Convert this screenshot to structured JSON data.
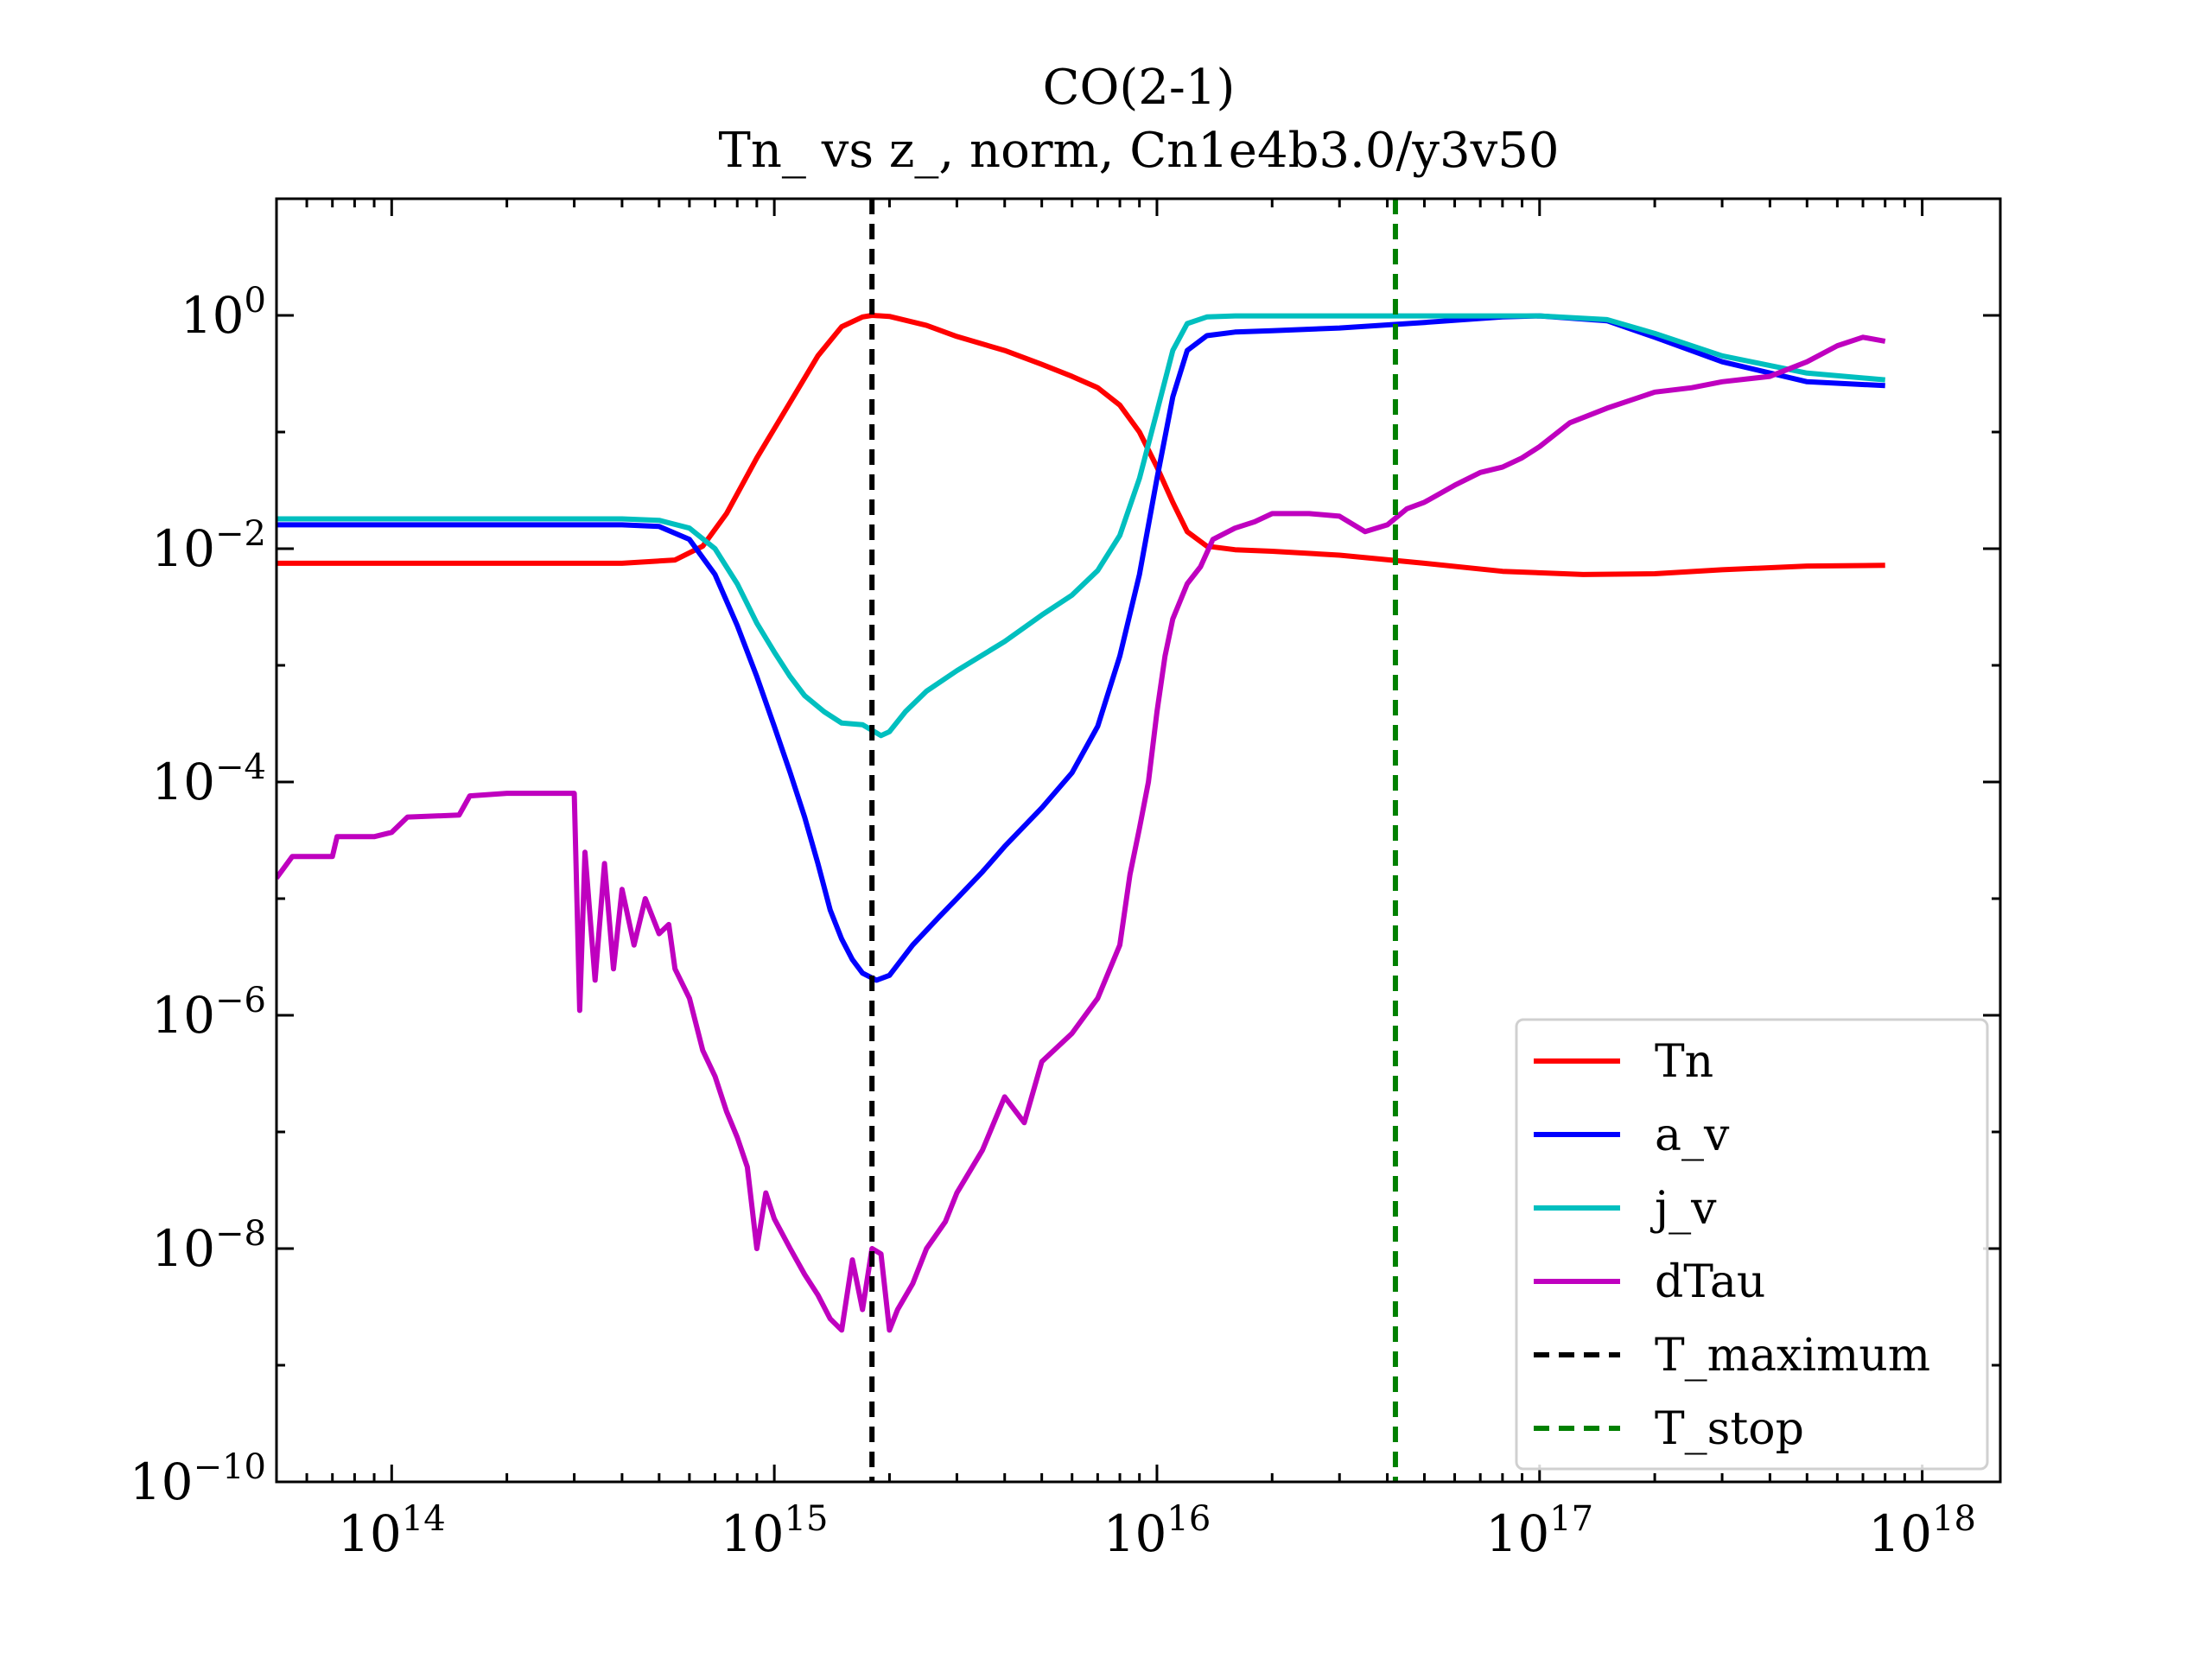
{
  "chart_data": {
    "type": "line",
    "title": "CO(2-1)",
    "subtitle": "Tn_ vs z_, norm, Cn1e4b3.0/y3v50",
    "xlabel": "",
    "ylabel": "",
    "xscale": "log",
    "yscale": "log",
    "xlim": [
      50000000000000.0,
      1.6e+18
    ],
    "ylim": [
      1e-10,
      10
    ],
    "x_ticks": [
      {
        "value": 100000000000000.0,
        "base": "10",
        "exp": "14"
      },
      {
        "value": 1000000000000000.0,
        "base": "10",
        "exp": "15"
      },
      {
        "value": 1e+16,
        "base": "10",
        "exp": "16"
      },
      {
        "value": 1e+17,
        "base": "10",
        "exp": "17"
      },
      {
        "value": 1e+18,
        "base": "10",
        "exp": "18"
      }
    ],
    "y_ticks": [
      {
        "value": 1,
        "base": "10",
        "exp": "0"
      },
      {
        "value": 0.01,
        "base": "10",
        "exp": "−2"
      },
      {
        "value": 0.0001,
        "base": "10",
        "exp": "−4"
      },
      {
        "value": 1e-06,
        "base": "10",
        "exp": "−6"
      },
      {
        "value": 1e-08,
        "base": "10",
        "exp": "−8"
      },
      {
        "value": 1e-10,
        "base": "10",
        "exp": "−10"
      }
    ],
    "grid": false,
    "legend_position": "bottom-right",
    "series": [
      {
        "name": "Tn",
        "color": "#ff0000",
        "style": "solid",
        "points": [
          [
            50000000000000.0,
            0.0075
          ],
          [
            200000000000000.0,
            0.0075
          ],
          [
            400000000000000.0,
            0.0075
          ],
          [
            550000000000000.0,
            0.008
          ],
          [
            650000000000000.0,
            0.0105
          ],
          [
            750000000000000.0,
            0.02
          ],
          [
            900000000000000.0,
            0.06
          ],
          [
            1100000000000000.0,
            0.18
          ],
          [
            1300000000000000.0,
            0.45
          ],
          [
            1500000000000000.0,
            0.8
          ],
          [
            1700000000000000.0,
            0.97
          ],
          [
            1800000000000000.0,
            1.0
          ],
          [
            2000000000000000.0,
            0.98
          ],
          [
            2500000000000000.0,
            0.82
          ],
          [
            3000000000000000.0,
            0.66
          ],
          [
            4000000000000000.0,
            0.5
          ],
          [
            5000000000000000.0,
            0.38
          ],
          [
            6000000000000000.0,
            0.3
          ],
          [
            7000000000000000.0,
            0.24
          ],
          [
            8000000000000000.0,
            0.17
          ],
          [
            9000000000000000.0,
            0.1
          ],
          [
            1e+16,
            0.05
          ],
          [
            1.1e+16,
            0.025
          ],
          [
            1.2e+16,
            0.014
          ],
          [
            1.35e+16,
            0.0105
          ],
          [
            1.6e+16,
            0.0098
          ],
          [
            2e+16,
            0.0095
          ],
          [
            3e+16,
            0.0088
          ],
          [
            5e+16,
            0.0075
          ],
          [
            8e+16,
            0.0064
          ],
          [
            1.3e+17,
            0.006
          ],
          [
            2e+17,
            0.0061
          ],
          [
            3e+17,
            0.0066
          ],
          [
            5e+17,
            0.0071
          ],
          [
            8e+17,
            0.0072
          ]
        ]
      },
      {
        "name": "a_v",
        "color": "#0000ff",
        "style": "solid",
        "points": [
          [
            50000000000000.0,
            0.016
          ],
          [
            200000000000000.0,
            0.016
          ],
          [
            400000000000000.0,
            0.016
          ],
          [
            500000000000000.0,
            0.0155
          ],
          [
            600000000000000.0,
            0.012
          ],
          [
            700000000000000.0,
            0.006
          ],
          [
            800000000000000.0,
            0.0022
          ],
          [
            900000000000000.0,
            0.0008
          ],
          [
            1000000000000000.0,
            0.0003
          ],
          [
            1100000000000000.0,
            0.00012
          ],
          [
            1200000000000000.0,
            5e-05
          ],
          [
            1300000000000000.0,
            2e-05
          ],
          [
            1400000000000000.0,
            8e-06
          ],
          [
            1500000000000000.0,
            4.5e-06
          ],
          [
            1600000000000000.0,
            3e-06
          ],
          [
            1700000000000000.0,
            2.3e-06
          ],
          [
            1850000000000000.0,
            2e-06
          ],
          [
            2000000000000000.0,
            2.2e-06
          ],
          [
            2300000000000000.0,
            4e-06
          ],
          [
            2700000000000000.0,
            7e-06
          ],
          [
            3000000000000000.0,
            1e-05
          ],
          [
            3500000000000000.0,
            1.7e-05
          ],
          [
            4000000000000000.0,
            2.8e-05
          ],
          [
            5000000000000000.0,
            6e-05
          ],
          [
            6000000000000000.0,
            0.00012
          ],
          [
            7000000000000000.0,
            0.0003
          ],
          [
            8000000000000000.0,
            0.0012
          ],
          [
            9000000000000000.0,
            0.006
          ],
          [
            1e+16,
            0.04
          ],
          [
            1.1e+16,
            0.2
          ],
          [
            1.2e+16,
            0.5
          ],
          [
            1.35e+16,
            0.67
          ],
          [
            1.6e+16,
            0.72
          ],
          [
            2e+16,
            0.74
          ],
          [
            3e+16,
            0.78
          ],
          [
            5e+16,
            0.87
          ],
          [
            8e+16,
            0.97
          ],
          [
            1e+17,
            0.99
          ],
          [
            1.5e+17,
            0.9
          ],
          [
            2e+17,
            0.65
          ],
          [
            3e+17,
            0.4
          ],
          [
            5e+17,
            0.27
          ],
          [
            8e+17,
            0.25
          ]
        ]
      },
      {
        "name": "j_v",
        "color": "#00bfbf",
        "style": "solid",
        "points": [
          [
            50000000000000.0,
            0.018
          ],
          [
            200000000000000.0,
            0.018
          ],
          [
            400000000000000.0,
            0.018
          ],
          [
            500000000000000.0,
            0.0175
          ],
          [
            600000000000000.0,
            0.015
          ],
          [
            700000000000000.0,
            0.01
          ],
          [
            800000000000000.0,
            0.005
          ],
          [
            900000000000000.0,
            0.0023
          ],
          [
            1000000000000000.0,
            0.0013
          ],
          [
            1100000000000000.0,
            0.0008
          ],
          [
            1200000000000000.0,
            0.00055
          ],
          [
            1350000000000000.0,
            0.0004
          ],
          [
            1500000000000000.0,
            0.00032
          ],
          [
            1700000000000000.0,
            0.00031
          ],
          [
            1900000000000000.0,
            0.00025
          ],
          [
            2000000000000000.0,
            0.00027
          ],
          [
            2200000000000000.0,
            0.0004
          ],
          [
            2500000000000000.0,
            0.0006
          ],
          [
            3000000000000000.0,
            0.0009
          ],
          [
            4000000000000000.0,
            0.0016
          ],
          [
            5000000000000000.0,
            0.0027
          ],
          [
            6000000000000000.0,
            0.004
          ],
          [
            7000000000000000.0,
            0.0065
          ],
          [
            8000000000000000.0,
            0.013
          ],
          [
            9000000000000000.0,
            0.04
          ],
          [
            1e+16,
            0.15
          ],
          [
            1.1e+16,
            0.5
          ],
          [
            1.2e+16,
            0.85
          ],
          [
            1.35e+16,
            0.97
          ],
          [
            1.6e+16,
            0.99
          ],
          [
            2e+16,
            0.99
          ],
          [
            5e+16,
            0.99
          ],
          [
            1e+17,
            0.99
          ],
          [
            1.5e+17,
            0.92
          ],
          [
            2e+17,
            0.7
          ],
          [
            3e+17,
            0.45
          ],
          [
            5e+17,
            0.32
          ],
          [
            8e+17,
            0.28
          ]
        ]
      },
      {
        "name": "dTau",
        "color": "#bf00bf",
        "style": "solid",
        "points": [
          [
            50000000000000.0,
            1.5e-05
          ],
          [
            55000000000000.0,
            2.3e-05
          ],
          [
            70000000000000.0,
            2.3e-05
          ],
          [
            72000000000000.0,
            3.4e-05
          ],
          [
            90000000000000.0,
            3.4e-05
          ],
          [
            100000000000000.0,
            3.7e-05
          ],
          [
            110000000000000.0,
            5e-05
          ],
          [
            150000000000000.0,
            5.2e-05
          ],
          [
            160000000000000.0,
            7.6e-05
          ],
          [
            200000000000000.0,
            8e-05
          ],
          [
            300000000000000.0,
            8e-05
          ],
          [
            310000000000000.0,
            1.1e-06
          ],
          [
            320000000000000.0,
            2.5e-05
          ],
          [
            340000000000000.0,
            2e-06
          ],
          [
            360000000000000.0,
            2e-05
          ],
          [
            380000000000000.0,
            2.5e-06
          ],
          [
            400000000000000.0,
            1.2e-05
          ],
          [
            430000000000000.0,
            4e-06
          ],
          [
            460000000000000.0,
            1e-05
          ],
          [
            500000000000000.0,
            5e-06
          ],
          [
            530000000000000.0,
            6e-06
          ],
          [
            550000000000000.0,
            2.5e-06
          ],
          [
            600000000000000.0,
            1.4e-06
          ],
          [
            650000000000000.0,
            5e-07
          ],
          [
            700000000000000.0,
            3e-07
          ],
          [
            750000000000000.0,
            1.5e-07
          ],
          [
            800000000000000.0,
            9e-08
          ],
          [
            850000000000000.0,
            5e-08
          ],
          [
            900000000000000.0,
            1e-08
          ],
          [
            950000000000000.0,
            3e-08
          ],
          [
            1000000000000000.0,
            1.8e-08
          ],
          [
            1100000000000000.0,
            1e-08
          ],
          [
            1200000000000000.0,
            6e-09
          ],
          [
            1300000000000000.0,
            4e-09
          ],
          [
            1400000000000000.0,
            2.5e-09
          ],
          [
            1500000000000000.0,
            2e-09
          ],
          [
            1600000000000000.0,
            8e-09
          ],
          [
            1700000000000000.0,
            3e-09
          ],
          [
            1800000000000000.0,
            1e-08
          ],
          [
            1900000000000000.0,
            9e-09
          ],
          [
            2000000000000000.0,
            2e-09
          ],
          [
            2100000000000000.0,
            3e-09
          ],
          [
            2300000000000000.0,
            5e-09
          ],
          [
            2500000000000000.0,
            1e-08
          ],
          [
            2800000000000000.0,
            1.7e-08
          ],
          [
            3000000000000000.0,
            3e-08
          ],
          [
            3500000000000000.0,
            7e-08
          ],
          [
            4000000000000000.0,
            2e-07
          ],
          [
            4500000000000000.0,
            1.2e-07
          ],
          [
            5000000000000000.0,
            4e-07
          ],
          [
            6000000000000000.0,
            7e-07
          ],
          [
            7000000000000000.0,
            1.4e-06
          ],
          [
            8000000000000000.0,
            4e-06
          ],
          [
            8500000000000000.0,
            1.6e-05
          ],
          [
            9000000000000000.0,
            4e-05
          ],
          [
            9500000000000000.0,
            0.0001
          ],
          [
            1e+16,
            0.0004
          ],
          [
            1.05e+16,
            0.0012
          ],
          [
            1.1e+16,
            0.0025
          ],
          [
            1.2e+16,
            0.005
          ],
          [
            1.3e+16,
            0.007
          ],
          [
            1.4e+16,
            0.012
          ],
          [
            1.6e+16,
            0.015
          ],
          [
            1.8e+16,
            0.017
          ],
          [
            2e+16,
            0.02
          ],
          [
            2.5e+16,
            0.02
          ],
          [
            3e+16,
            0.019
          ],
          [
            3.5e+16,
            0.014
          ],
          [
            4e+16,
            0.016
          ],
          [
            4.5e+16,
            0.022
          ],
          [
            5e+16,
            0.025
          ],
          [
            6e+16,
            0.035
          ],
          [
            7e+16,
            0.045
          ],
          [
            8e+16,
            0.05
          ],
          [
            9e+16,
            0.06
          ],
          [
            1e+17,
            0.075
          ],
          [
            1.2e+17,
            0.12
          ],
          [
            1.5e+17,
            0.16
          ],
          [
            2e+17,
            0.22
          ],
          [
            2.5e+17,
            0.24
          ],
          [
            3e+17,
            0.27
          ],
          [
            4e+17,
            0.3
          ],
          [
            5e+17,
            0.4
          ],
          [
            6e+17,
            0.55
          ],
          [
            7e+17,
            0.65
          ],
          [
            8e+17,
            0.6
          ]
        ]
      },
      {
        "name": "T_maximum",
        "color": "#000000",
        "style": "dashed",
        "vline": 1800000000000000.0
      },
      {
        "name": "T_stop",
        "color": "#008000",
        "style": "dashed",
        "vline": 4.2e+16
      }
    ]
  }
}
